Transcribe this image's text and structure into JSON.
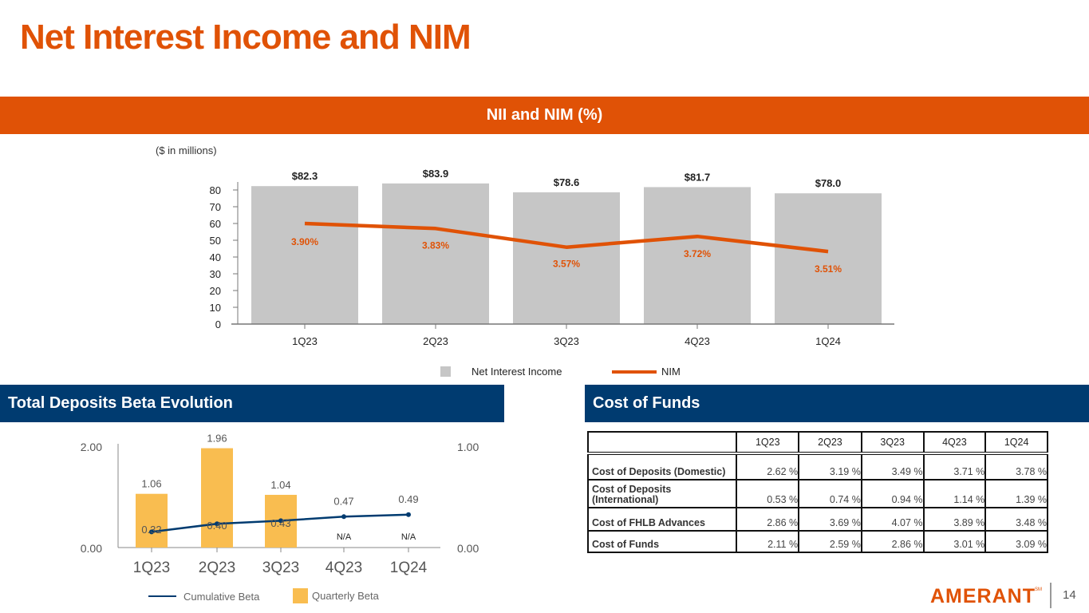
{
  "page": {
    "title": "Net Interest Income and NIM",
    "page_number": "14",
    "logo_text": "AMERANT",
    "logo_mark": "SM"
  },
  "nii_section": {
    "header": "NII and NIM (%)",
    "units_note": "($ in millions)",
    "legend": {
      "bar_label": "Net Interest Income",
      "line_label": "NIM"
    }
  },
  "beta_section": {
    "header": "Total Deposits Beta Evolution",
    "legend": {
      "line_label": "Cumulative Beta",
      "bar_label": "Quarterly Beta"
    }
  },
  "cof_section": {
    "header": "Cost of Funds",
    "columns": [
      "",
      "1Q23",
      "2Q23",
      "3Q23",
      "4Q23",
      "1Q24"
    ],
    "rows": [
      {
        "label": "Cost of Deposits (Domestic)",
        "values": [
          "2.62 %",
          "3.19 %",
          "3.49 %",
          "3.71 %",
          "3.78 %"
        ]
      },
      {
        "label": "Cost of Deposits (International)",
        "values": [
          "0.53 %",
          "0.74 %",
          "0.94 %",
          "1.14 %",
          "1.39 %"
        ]
      },
      {
        "label": "Cost of FHLB Advances",
        "values": [
          "2.86 %",
          "3.69 %",
          "4.07 %",
          "3.89 %",
          "3.48 %"
        ]
      },
      {
        "label": "Cost of Funds",
        "values": [
          "2.11 %",
          "2.59 %",
          "2.86 %",
          "3.01 %",
          "3.09 %"
        ]
      }
    ]
  },
  "colors": {
    "orange": "#e05206",
    "navy": "#003b70",
    "bar_gray": "#c6c6c6",
    "beta_bar": "#f9bd50"
  },
  "chart_data": [
    {
      "type": "bar",
      "title": "NII and NIM (%)",
      "ylabel": "($ in millions)",
      "categories": [
        "1Q23",
        "2Q23",
        "3Q23",
        "4Q23",
        "1Q24"
      ],
      "ylim": [
        0,
        80
      ],
      "yticks": [
        0,
        10,
        20,
        30,
        40,
        50,
        60,
        70,
        80
      ],
      "series": [
        {
          "name": "Net Interest Income",
          "type": "bar",
          "values": [
            82.3,
            83.9,
            78.6,
            81.7,
            78.0
          ],
          "labels": [
            "$82.3",
            "$83.9",
            "$78.6",
            "$81.7",
            "$78.0"
          ]
        },
        {
          "name": "NIM",
          "type": "line",
          "values": [
            3.9,
            3.83,
            3.57,
            3.72,
            3.51
          ],
          "labels": [
            "3.90%",
            "3.83%",
            "3.57%",
            "3.72%",
            "3.51%"
          ]
        }
      ],
      "legend": "bottom",
      "grid": false
    },
    {
      "type": "bar",
      "title": "Total Deposits Beta Evolution",
      "categories": [
        "1Q23",
        "2Q23",
        "3Q23",
        "4Q23",
        "1Q24"
      ],
      "ylim_left": [
        0,
        2.0
      ],
      "yticks_left": [
        "0.00",
        "2.00"
      ],
      "ylim_right": [
        0,
        1.0
      ],
      "yticks_right": [
        "0.00",
        "1.00"
      ],
      "series": [
        {
          "name": "Quarterly Beta",
          "type": "bar",
          "axis": "left",
          "values": [
            1.06,
            1.96,
            1.04,
            null,
            null
          ],
          "labels": [
            "1.06",
            "1.96",
            "1.04",
            "N/A",
            "N/A"
          ]
        },
        {
          "name": "Cumulative Beta",
          "type": "line",
          "axis": "right",
          "values": [
            0.32,
            0.4,
            0.43,
            0.47,
            0.49
          ],
          "labels": [
            "0.32",
            "0.40",
            "0.43",
            "0.47",
            "0.49"
          ]
        }
      ],
      "legend": "bottom",
      "grid": false
    }
  ]
}
